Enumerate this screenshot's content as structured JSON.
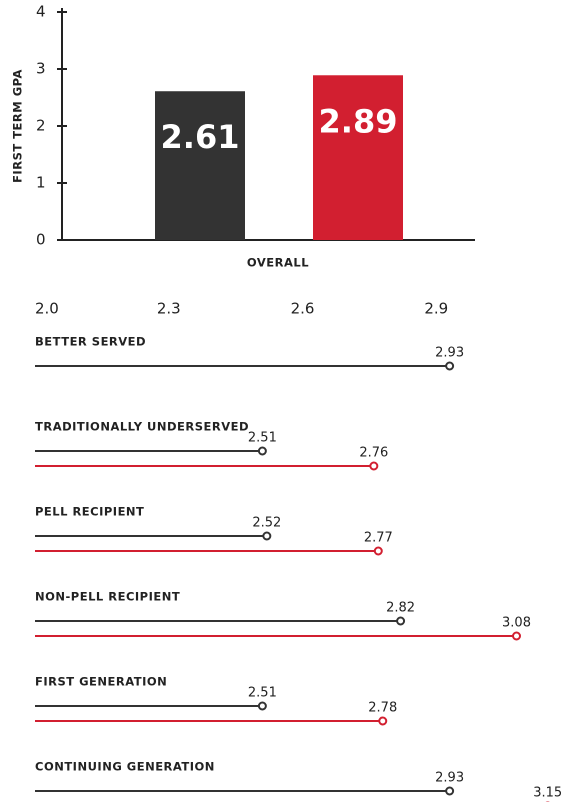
{
  "chart_data": [
    {
      "type": "bar",
      "categories": [
        "OVERALL"
      ],
      "xlabel": "OVERALL",
      "ylabel": "FIRST TERM GPA",
      "series": [
        {
          "color": "#333333",
          "values": [
            2.61
          ]
        },
        {
          "color": "#d21f30",
          "values": [
            2.89
          ]
        }
      ],
      "ylim": [
        0,
        4
      ],
      "yticks": [
        0,
        1,
        2,
        3,
        4
      ]
    },
    {
      "type": "lollipop",
      "categories": [
        "BETTER SERVED",
        "TRADITIONALLY UNDERSERVED",
        "PELL RECIPIENT",
        "NON-PELL RECIPIENT",
        "FIRST GENERATION",
        "CONTINUING GENERATION"
      ],
      "series": [
        {
          "color": "#333333",
          "values": [
            2.93,
            2.51,
            2.52,
            2.82,
            2.51,
            2.93
          ]
        },
        {
          "color": "#d21f30",
          "values": [
            null,
            2.76,
            2.77,
            3.08,
            2.78,
            3.15
          ]
        }
      ],
      "xlim": [
        2.0,
        3.2
      ],
      "xticks": [
        {
          "value": 2.0,
          "label": "2.0"
        },
        2.3,
        2.6,
        2.9
      ]
    }
  ]
}
